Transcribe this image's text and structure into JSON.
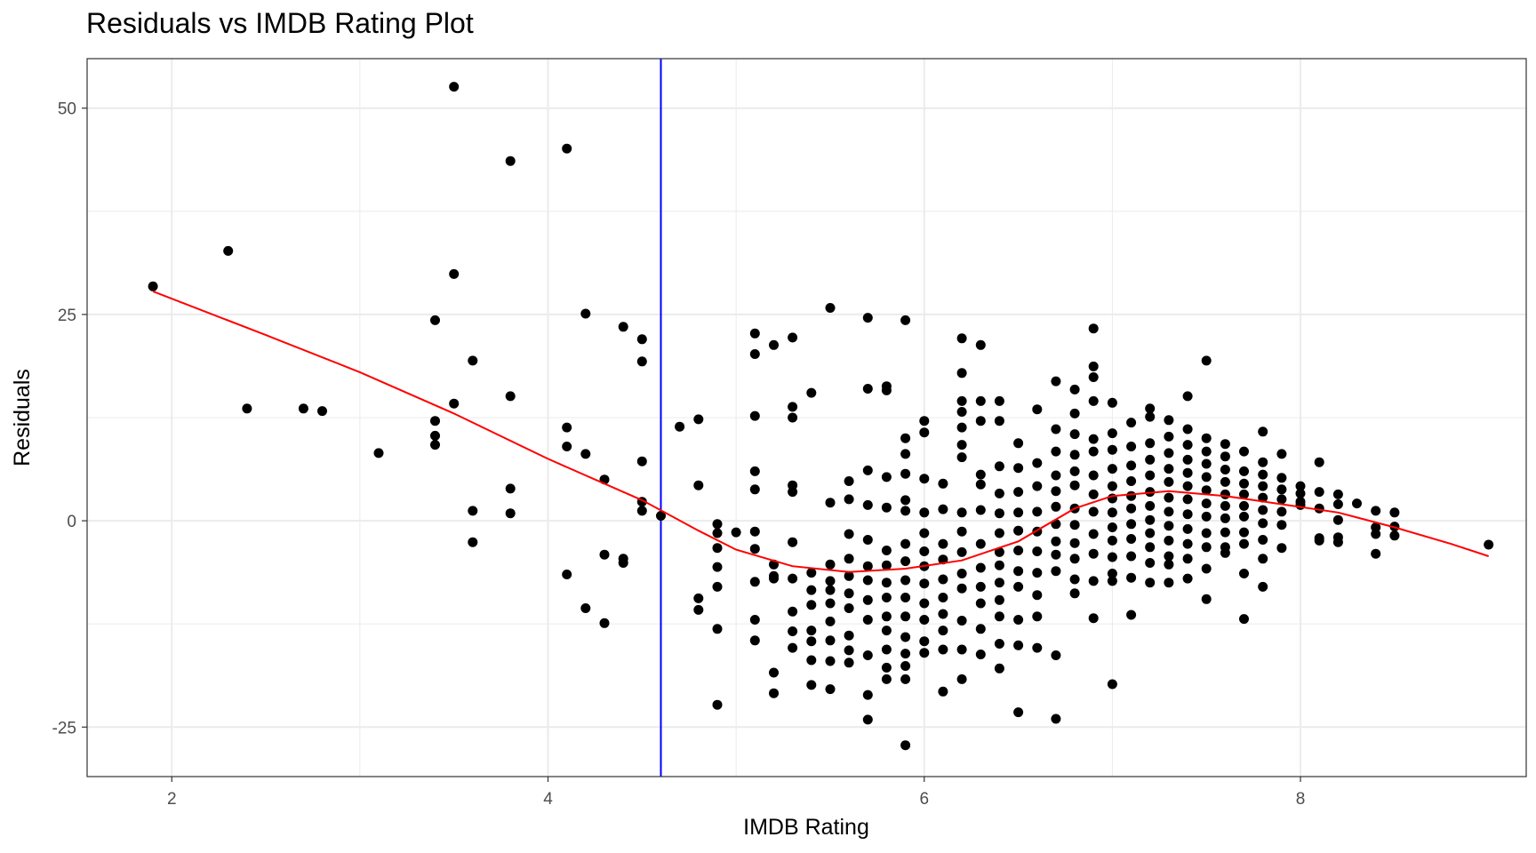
{
  "chart_data": {
    "type": "scatter",
    "title": "Residuals vs IMDB Rating Plot",
    "xlabel": "IMDB Rating",
    "ylabel": "Residuals",
    "xlim": [
      1.55,
      9.2
    ],
    "ylim": [
      -31,
      56
    ],
    "x_ticks": [
      2,
      4,
      6,
      8
    ],
    "x_tick_labels": [
      "2",
      "4",
      "6",
      "8"
    ],
    "y_ticks": [
      -25,
      0,
      25,
      50
    ],
    "y_tick_labels": [
      "-25",
      "0",
      "25",
      "50"
    ],
    "grid": true,
    "legend": "none",
    "colors": {
      "points": "#000000",
      "smooth_line": "#ff0000",
      "reference_line": "#0000ff",
      "grid": "#ebebeb",
      "panel_border": "#333333"
    },
    "reference_line": {
      "orientation": "vertical",
      "x": 4.6
    },
    "smooth_line": {
      "x": [
        1.9,
        2.5,
        3.0,
        3.5,
        4.0,
        4.5,
        4.8,
        5.0,
        5.3,
        5.6,
        5.9,
        6.2,
        6.5,
        6.8,
        7.0,
        7.3,
        7.6,
        7.9,
        8.2,
        8.5,
        8.8,
        9.0
      ],
      "y": [
        27.8,
        22.5,
        18.0,
        13.0,
        7.5,
        2.5,
        -1.2,
        -3.5,
        -5.5,
        -6.2,
        -5.8,
        -4.8,
        -2.5,
        1.5,
        3.0,
        3.6,
        3.0,
        2.0,
        1.0,
        -0.8,
        -2.8,
        -4.3
      ]
    },
    "series": [
      {
        "x": [
          1.9,
          2.3,
          2.4,
          2.7,
          2.8,
          3.1,
          3.4,
          3.4,
          3.4,
          3.4,
          3.5,
          3.5,
          3.5,
          3.6,
          3.6,
          3.6,
          3.8,
          3.8,
          3.8,
          3.8,
          4.1,
          4.1,
          4.1,
          4.1,
          4.2,
          4.2,
          4.2,
          4.3,
          4.3,
          4.3,
          4.4,
          4.4,
          4.4,
          4.5,
          4.5,
          4.5,
          4.5,
          4.5,
          4.6,
          4.7,
          4.8,
          4.8,
          4.8,
          4.8,
          4.9,
          4.9,
          4.9,
          4.9,
          4.9,
          4.9,
          4.9,
          5.0,
          5.1,
          5.1,
          5.1,
          5.1,
          5.1,
          5.1,
          5.1,
          5.1,
          5.1,
          5.1,
          5.2,
          5.2,
          5.2,
          5.2,
          5.2,
          5.2,
          5.3,
          5.3,
          5.3,
          5.3,
          5.3,
          5.3,
          5.3,
          5.3,
          5.3,
          5.3,
          5.4,
          5.4,
          5.4,
          5.4,
          5.4,
          5.4,
          5.4,
          5.4,
          5.5,
          5.5,
          5.5,
          5.5,
          5.5,
          5.5,
          5.5,
          5.5,
          5.5,
          5.5,
          5.6,
          5.6,
          5.6,
          5.6,
          5.6,
          5.6,
          5.6,
          5.6,
          5.6,
          5.6,
          5.7,
          5.7,
          5.7,
          5.7,
          5.7,
          5.7,
          5.7,
          5.7,
          5.7,
          5.7,
          5.7,
          5.7,
          5.8,
          5.8,
          5.8,
          5.8,
          5.8,
          5.8,
          5.8,
          5.8,
          5.8,
          5.8,
          5.8,
          5.8,
          5.8,
          5.9,
          5.9,
          5.9,
          5.9,
          5.9,
          5.9,
          5.9,
          5.9,
          5.9,
          5.9,
          5.9,
          5.9,
          5.9,
          5.9,
          5.9,
          5.9,
          6.0,
          6.0,
          6.0,
          6.0,
          6.0,
          6.0,
          6.0,
          6.0,
          6.0,
          6.0,
          6.0,
          6.0,
          6.1,
          6.1,
          6.1,
          6.1,
          6.1,
          6.1,
          6.1,
          6.1,
          6.1,
          6.1,
          6.2,
          6.2,
          6.2,
          6.2,
          6.2,
          6.2,
          6.2,
          6.2,
          6.2,
          6.2,
          6.2,
          6.2,
          6.2,
          6.2,
          6.2,
          6.3,
          6.3,
          6.3,
          6.3,
          6.3,
          6.3,
          6.3,
          6.3,
          6.3,
          6.3,
          6.3,
          6.3,
          6.4,
          6.4,
          6.4,
          6.4,
          6.4,
          6.4,
          6.4,
          6.4,
          6.4,
          6.4,
          6.4,
          6.4,
          6.4,
          6.5,
          6.5,
          6.5,
          6.5,
          6.5,
          6.5,
          6.5,
          6.5,
          6.5,
          6.5,
          6.5,
          6.6,
          6.6,
          6.6,
          6.6,
          6.6,
          6.6,
          6.6,
          6.6,
          6.6,
          6.6,
          6.7,
          6.7,
          6.7,
          6.7,
          6.7,
          6.7,
          6.7,
          6.7,
          6.7,
          6.7,
          6.7,
          6.7,
          6.8,
          6.8,
          6.8,
          6.8,
          6.8,
          6.8,
          6.8,
          6.8,
          6.8,
          6.8,
          6.8,
          6.8,
          6.9,
          6.9,
          6.9,
          6.9,
          6.9,
          6.9,
          6.9,
          6.9,
          6.9,
          6.9,
          6.9,
          6.9,
          6.9,
          7.0,
          7.0,
          7.0,
          7.0,
          7.0,
          7.0,
          7.0,
          7.0,
          7.0,
          7.0,
          7.0,
          7.0,
          7.0,
          7.1,
          7.1,
          7.1,
          7.1,
          7.1,
          7.1,
          7.1,
          7.1,
          7.1,
          7.1,
          7.1,
          7.2,
          7.2,
          7.2,
          7.2,
          7.2,
          7.2,
          7.2,
          7.2,
          7.2,
          7.2,
          7.2,
          7.2,
          7.3,
          7.3,
          7.3,
          7.3,
          7.3,
          7.3,
          7.3,
          7.3,
          7.3,
          7.3,
          7.3,
          7.3,
          7.4,
          7.4,
          7.4,
          7.4,
          7.4,
          7.4,
          7.4,
          7.4,
          7.4,
          7.4,
          7.4,
          7.4,
          7.5,
          7.5,
          7.5,
          7.5,
          7.5,
          7.5,
          7.5,
          7.5,
          7.5,
          7.5,
          7.5,
          7.5,
          7.6,
          7.6,
          7.6,
          7.6,
          7.6,
          7.6,
          7.6,
          7.6,
          7.6,
          7.6,
          7.7,
          7.7,
          7.7,
          7.7,
          7.7,
          7.7,
          7.7,
          7.7,
          7.7,
          7.7,
          7.8,
          7.8,
          7.8,
          7.8,
          7.8,
          7.8,
          7.8,
          7.8,
          7.8,
          7.8,
          7.9,
          7.9,
          7.9,
          7.9,
          7.9,
          7.9,
          7.9,
          8.0,
          8.0,
          8.0,
          8.0,
          8.1,
          8.1,
          8.1,
          8.1,
          8.1,
          8.2,
          8.2,
          8.2,
          8.2,
          8.2,
          8.3,
          8.4,
          8.4,
          8.4,
          8.4,
          8.5,
          8.5,
          8.5,
          9.0
        ],
        "y": [
          28.4,
          32.7,
          13.6,
          13.6,
          13.3,
          8.2,
          24.3,
          12.1,
          10.3,
          9.2,
          52.6,
          29.9,
          14.2,
          19.4,
          1.2,
          -2.6,
          43.6,
          15.1,
          3.9,
          0.9,
          45.1,
          11.3,
          9.0,
          -6.5,
          25.1,
          8.1,
          -10.6,
          5.0,
          -4.1,
          -12.4,
          23.5,
          -4.6,
          -5.1,
          22.0,
          19.3,
          7.2,
          2.3,
          1.2,
          0.6,
          11.4,
          12.3,
          4.3,
          -9.4,
          -10.8,
          -0.4,
          -1.5,
          -3.3,
          -5.6,
          -8.0,
          -13.1,
          -22.3,
          -1.4,
          22.7,
          20.2,
          12.7,
          6.0,
          3.8,
          -1.3,
          -3.4,
          -7.4,
          -12.0,
          -14.5,
          21.3,
          -5.3,
          -6.7,
          -18.4,
          -20.9,
          -7.0,
          22.2,
          13.8,
          12.5,
          4.3,
          3.5,
          -2.6,
          -7.0,
          -11.0,
          -13.4,
          -15.4,
          15.5,
          -6.3,
          -8.4,
          -10.2,
          -13.3,
          -14.6,
          -16.9,
          -19.9,
          25.8,
          2.2,
          -5.3,
          -7.3,
          -8.4,
          -10.0,
          -12.2,
          -14.5,
          -17.0,
          -20.4,
          4.8,
          2.6,
          -1.6,
          -4.6,
          -6.7,
          -8.8,
          -10.6,
          -13.9,
          -15.7,
          -17.2,
          24.6,
          16.0,
          6.1,
          1.9,
          -2.3,
          -5.5,
          -7.2,
          -9.6,
          -12.0,
          -16.3,
          -21.1,
          -24.1,
          16.3,
          15.8,
          5.3,
          1.6,
          -3.6,
          -5.4,
          -7.5,
          -9.3,
          -11.6,
          -13.3,
          -15.6,
          -17.8,
          -19.2,
          24.3,
          10.0,
          8.1,
          5.7,
          2.5,
          1.2,
          -2.8,
          -4.9,
          -7.2,
          -9.3,
          -11.6,
          -14.1,
          -16.1,
          -17.6,
          -19.2,
          -27.2,
          12.1,
          10.7,
          5.1,
          1.0,
          -1.5,
          -3.7,
          -5.5,
          -7.6,
          -10.0,
          -12.0,
          -14.6,
          -16.0,
          4.5,
          1.4,
          -2.8,
          -4.7,
          -7.1,
          -9.3,
          -11.3,
          -13.3,
          -15.6,
          -20.7,
          22.1,
          17.9,
          14.5,
          13.2,
          11.3,
          9.2,
          7.7,
          1.0,
          -1.3,
          -3.8,
          -6.4,
          -8.2,
          -12.1,
          -15.6,
          -19.2,
          21.3,
          14.5,
          12.1,
          5.6,
          4.4,
          1.3,
          -2.8,
          -5.7,
          -8.0,
          -10.0,
          -13.1,
          -16.2,
          14.5,
          12.1,
          6.6,
          3.3,
          0.9,
          -1.5,
          -3.8,
          -5.4,
          -7.5,
          -9.6,
          -11.6,
          -14.9,
          -17.9,
          9.4,
          6.4,
          3.5,
          1.0,
          -1.2,
          -3.6,
          -6.1,
          -8.0,
          -12.0,
          -15.1,
          -23.2,
          13.5,
          7.0,
          4.2,
          1.1,
          -1.3,
          -3.7,
          -6.3,
          -9.0,
          -11.6,
          -15.4,
          16.9,
          11.1,
          8.4,
          5.5,
          3.6,
          1.7,
          -0.4,
          -2.5,
          -4.1,
          -6.1,
          -16.3,
          -24.0,
          15.9,
          13.0,
          10.5,
          8.0,
          6.0,
          4.3,
          1.5,
          -0.5,
          -2.7,
          -4.6,
          -7.1,
          -8.8,
          23.3,
          18.7,
          17.4,
          14.5,
          9.9,
          8.4,
          5.5,
          3.2,
          1.1,
          -1.6,
          -4.0,
          -7.3,
          -11.8,
          14.3,
          10.6,
          8.6,
          6.3,
          4.2,
          2.7,
          1.0,
          -0.8,
          -2.4,
          -4.4,
          -6.4,
          -7.3,
          -19.8,
          11.9,
          9.0,
          6.7,
          4.8,
          3.0,
          1.5,
          -0.4,
          -2.2,
          -4.3,
          -6.9,
          -11.4,
          13.6,
          12.6,
          9.4,
          7.4,
          5.5,
          3.5,
          1.8,
          0.1,
          -1.5,
          -3.2,
          -5.1,
          -7.5,
          12.2,
          10.2,
          8.2,
          6.3,
          4.7,
          2.8,
          1.1,
          -0.6,
          -2.4,
          -4.3,
          -5.3,
          -7.5,
          15.1,
          11.1,
          9.2,
          7.4,
          5.8,
          4.2,
          2.6,
          0.8,
          -1.0,
          -2.8,
          -4.6,
          -7.0,
          19.4,
          10.0,
          8.4,
          6.9,
          5.3,
          3.7,
          2.1,
          0.5,
          -1.5,
          -3.2,
          -5.8,
          -9.5,
          9.3,
          7.8,
          6.2,
          4.7,
          3.2,
          1.8,
          0.3,
          -1.4,
          -3.2,
          -3.9,
          8.4,
          6.0,
          4.5,
          3.2,
          1.8,
          0.5,
          -1.4,
          -2.8,
          -6.4,
          -11.9,
          10.8,
          7.1,
          5.6,
          4.2,
          2.8,
          1.3,
          -0.3,
          -2.3,
          -4.6,
          -8.0,
          8.1,
          5.2,
          3.8,
          2.6,
          1.1,
          -0.5,
          -3.3,
          4.2,
          3.3,
          2.3,
          1.9,
          7.1,
          3.5,
          1.5,
          -2.1,
          -2.4,
          3.2,
          2.0,
          0.1,
          -2.0,
          -2.6,
          2.1,
          1.2,
          -0.8,
          -1.6,
          -4.0,
          1.0,
          -0.7,
          -1.8,
          -2.9
        ]
      }
    ]
  }
}
